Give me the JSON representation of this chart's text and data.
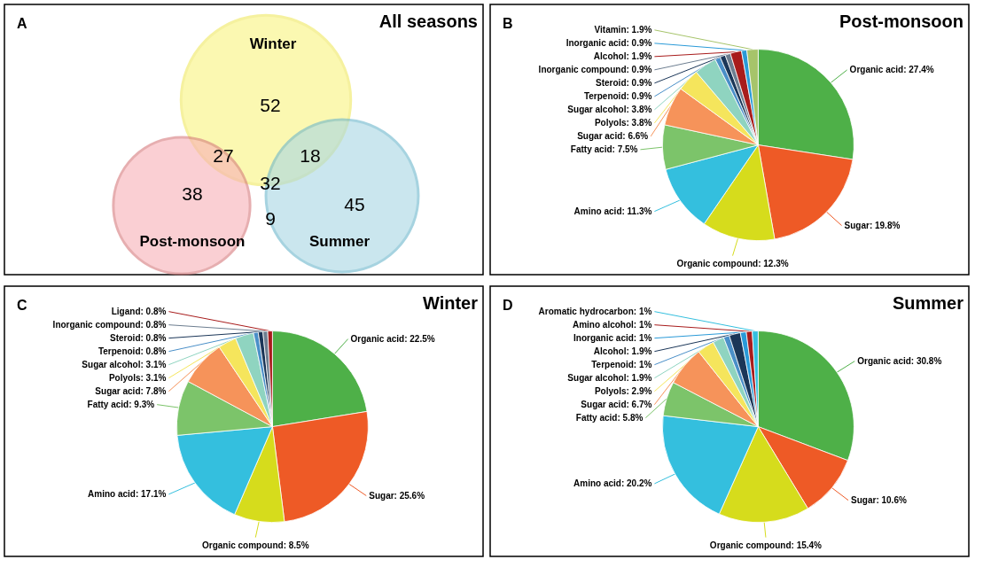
{
  "chart_data": [
    {
      "type": "other",
      "title": "All seasons",
      "annotations": [
        "A",
        "52",
        "38",
        "45",
        "27",
        "18",
        "9",
        "32"
      ],
      "categories": [
        "Winter",
        "Post-monsoon",
        "Summer"
      ],
      "colors": [
        "#faf47e",
        "#f8b0b6",
        "#a8d7e3"
      ]
    },
    {
      "type": "pie",
      "title": "Post-monsoon",
      "annotations": [
        "B"
      ],
      "categories": [
        "Organic acid",
        "Sugar",
        "Organic compound",
        "Amino acid",
        "Fatty acid",
        "Sugar acid",
        "Polyols",
        "Sugar alcohol",
        "Terpenoid",
        "Steroid",
        "Inorganic compound",
        "Alcohol",
        "Inorganic acid",
        "Vitamin"
      ],
      "values": [
        27.4,
        19.8,
        12.3,
        11.3,
        7.5,
        6.6,
        3.8,
        3.8,
        0.9,
        0.9,
        0.9,
        1.9,
        0.9,
        1.9
      ],
      "value_labels": [
        "27.4%",
        "19.8%",
        "12.3%",
        "11.3%",
        "7.5%",
        "6.6%",
        "3.8%",
        "3.8%",
        "0.9%",
        "0.9%",
        "0.9%",
        "1.9%",
        "0.9%",
        "1.9%"
      ],
      "colors": [
        "#4eb048",
        "#ee5a26",
        "#d6dc1c",
        "#34bfde",
        "#7cc46a",
        "#f6935a",
        "#f5e55c",
        "#8fd4c0",
        "#4a8fc8",
        "#1b3658",
        "#6d7e90",
        "#a81c1c",
        "#2a9ad8",
        "#a6c46a"
      ]
    },
    {
      "type": "pie",
      "title": "Winter",
      "annotations": [
        "C"
      ],
      "categories": [
        "Organic acid",
        "Sugar",
        "Organic compound",
        "Amino acid",
        "Fatty acid",
        "Sugar acid",
        "Polyols",
        "Sugar alcohol",
        "Terpenoid",
        "Steroid",
        "Inorganic compound",
        "Ligand"
      ],
      "values": [
        22.5,
        25.6,
        8.5,
        17.1,
        9.3,
        7.8,
        3.1,
        3.1,
        0.8,
        0.8,
        0.8,
        0.8
      ],
      "value_labels": [
        "22.5%",
        "25.6%",
        "8.5%",
        "17.1%",
        "9.3%",
        "7.8%",
        "3.1%",
        "3.1%",
        "0.8%",
        "0.8%",
        "0.8%",
        "0.8%"
      ],
      "colors": [
        "#4eb048",
        "#ee5a26",
        "#d6dc1c",
        "#34bfde",
        "#7cc46a",
        "#f6935a",
        "#f5e55c",
        "#8fd4c0",
        "#4a8fc8",
        "#1b3658",
        "#6d7e90",
        "#a81c1c"
      ]
    },
    {
      "type": "pie",
      "title": "Summer",
      "annotations": [
        "D"
      ],
      "categories": [
        "Organic acid",
        "Sugar",
        "Organic compound",
        "Amino acid",
        "Fatty acid",
        "Sugar acid",
        "Polyols",
        "Sugar alcohol",
        "Terpenoid",
        "Alcohol",
        "Inorganic acid",
        "Amino alcohol",
        "Aromatic hydrocarbon"
      ],
      "values": [
        30.8,
        10.6,
        15.4,
        20.2,
        5.8,
        6.7,
        2.9,
        1.9,
        1,
        1.9,
        1,
        1,
        1
      ],
      "value_labels": [
        "30.8%",
        "10.6%",
        "15.4%",
        "20.2%",
        "5.8%",
        "6.7%",
        "2.9%",
        "1.9%",
        "1%",
        "1.9%",
        "1%",
        "1%",
        "1%"
      ],
      "colors": [
        "#4eb048",
        "#ee5a26",
        "#d6dc1c",
        "#34bfde",
        "#7cc46a",
        "#f6935a",
        "#f5e55c",
        "#8fd4c0",
        "#4a8fc8",
        "#1b3658",
        "#2a9ad8",
        "#a81c1c",
        "#34bfde"
      ]
    }
  ]
}
